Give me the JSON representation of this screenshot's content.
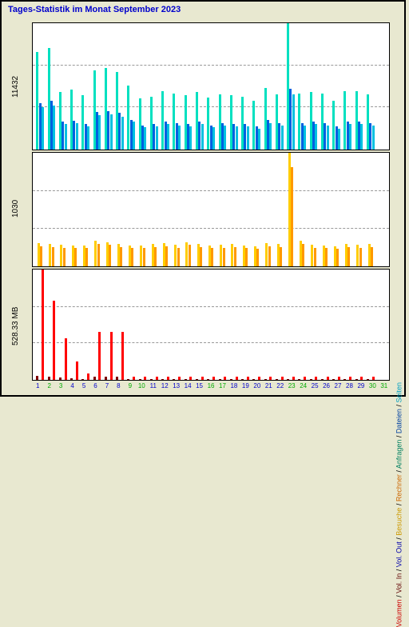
{
  "title": "Tages-Statistik im Monat September 2023",
  "background_color": "#e8e8d0",
  "panel_bg": "#ffffff",
  "border_color": "#000000",
  "grid_color": "#999999",
  "days": [
    1,
    2,
    3,
    4,
    5,
    6,
    7,
    8,
    9,
    10,
    11,
    12,
    13,
    14,
    15,
    16,
    17,
    18,
    19,
    20,
    21,
    22,
    23,
    24,
    25,
    26,
    27,
    28,
    29,
    30,
    31
  ],
  "weekend_days": [
    2,
    3,
    9,
    10,
    16,
    17,
    23,
    24,
    30
  ],
  "xaxis_weekend_color": "#00aa00",
  "xaxis_weekday_color": "#0000cc",
  "top_panel": {
    "ymax": 11432,
    "ylabel": "11432",
    "series": {
      "anfragen": {
        "color": "#00e0c0",
        "values": [
          8800,
          9200,
          5200,
          5400,
          4900,
          7200,
          7400,
          7000,
          5800,
          4600,
          4800,
          5300,
          5100,
          4900,
          5200,
          4700,
          5000,
          4900,
          4800,
          4400,
          5600,
          5000,
          11432,
          5100,
          5200,
          5100,
          4400,
          5300,
          5300,
          5000,
          0
        ]
      },
      "dateien": {
        "color": "#0060e0",
        "values": [
          4200,
          4400,
          2500,
          2600,
          2300,
          3400,
          3500,
          3300,
          2700,
          2200,
          2300,
          2500,
          2400,
          2300,
          2500,
          2200,
          2400,
          2300,
          2300,
          2100,
          2700,
          2400,
          5500,
          2400,
          2500,
          2400,
          2100,
          2500,
          2500,
          2400,
          0
        ]
      },
      "seiten": {
        "color": "#00c0e0",
        "values": [
          3800,
          4000,
          2300,
          2400,
          2100,
          3100,
          3200,
          3000,
          2500,
          2000,
          2100,
          2300,
          2200,
          2100,
          2300,
          2000,
          2200,
          2100,
          2100,
          1900,
          2400,
          2200,
          5000,
          2200,
          2300,
          2200,
          1900,
          2300,
          2300,
          2200,
          0
        ]
      }
    },
    "legend": [
      {
        "label": "Anfragen",
        "color": "#008060"
      },
      {
        "label": "Dateien",
        "color": "#0040a0"
      },
      {
        "label": "Seiten",
        "color": "#00a0c0"
      }
    ]
  },
  "mid_panel": {
    "ymax": 1030,
    "ylabel": "1030",
    "series": {
      "besuche": {
        "color": "#ffcc00",
        "values": [
          210,
          200,
          195,
          190,
          190,
          230,
          220,
          200,
          190,
          190,
          200,
          210,
          195,
          220,
          200,
          190,
          195,
          200,
          190,
          185,
          210,
          200,
          1030,
          230,
          195,
          190,
          185,
          200,
          195,
          200,
          0
        ]
      },
      "rechner": {
        "color": "#ff9900",
        "values": [
          180,
          175,
          170,
          165,
          165,
          200,
          195,
          175,
          165,
          165,
          175,
          185,
          170,
          195,
          175,
          165,
          170,
          175,
          165,
          160,
          185,
          175,
          900,
          200,
          170,
          165,
          160,
          175,
          170,
          175,
          0
        ]
      }
    },
    "legend": [
      {
        "label": "Besuche",
        "color": "#cc9900"
      },
      {
        "label": "Rechner",
        "color": "#cc6600"
      }
    ]
  },
  "bot_panel": {
    "ymax": 528.33,
    "ylabel": "528.33 MB",
    "series": {
      "vol_in": {
        "color": "#800000",
        "values": [
          20,
          15,
          10,
          8,
          5,
          15,
          15,
          15,
          5,
          5,
          5,
          5,
          5,
          5,
          5,
          5,
          5,
          5,
          5,
          5,
          5,
          5,
          5,
          5,
          5,
          5,
          5,
          5,
          5,
          5,
          0
        ]
      },
      "vol_out": {
        "color": "#0000cc",
        "values": [
          0,
          0,
          0,
          0,
          0,
          0,
          0,
          0,
          0,
          0,
          0,
          0,
          0,
          0,
          0,
          0,
          0,
          0,
          0,
          0,
          0,
          0,
          0,
          0,
          0,
          0,
          0,
          0,
          0,
          0,
          0
        ]
      },
      "volumen": {
        "color": "#ff0000",
        "values": [
          528,
          380,
          200,
          90,
          30,
          230,
          230,
          230,
          15,
          15,
          15,
          15,
          15,
          15,
          15,
          15,
          15,
          15,
          15,
          15,
          15,
          15,
          15,
          15,
          15,
          15,
          15,
          15,
          15,
          15,
          0
        ]
      }
    },
    "legend": [
      {
        "label": "Volumen",
        "color": "#cc0000"
      },
      {
        "label": "Vol. In",
        "color": "#600000"
      },
      {
        "label": "Vol. Out",
        "color": "#0000aa"
      }
    ]
  }
}
